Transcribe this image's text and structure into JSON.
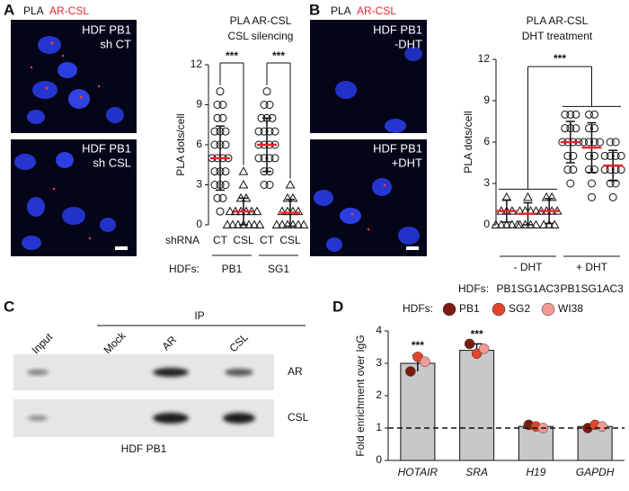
{
  "panels": {
    "A": {
      "letter": "A",
      "header": [
        "PLA",
        "AR-CSL"
      ],
      "images": [
        {
          "label": [
            "HDF PB1",
            "sh CT"
          ]
        },
        {
          "label": [
            "HDF PB1",
            "sh CSL"
          ]
        }
      ]
    },
    "B": {
      "letter": "B",
      "header": [
        "PLA",
        "AR-CSL"
      ],
      "images": [
        {
          "label": [
            "HDF PB1",
            "-DHT"
          ]
        },
        {
          "label": [
            "HDF PB1",
            "+DHT"
          ]
        }
      ]
    },
    "C": {
      "letter": "C",
      "ip_label": "IP",
      "lanes": [
        "Input",
        "Mock",
        "AR",
        "CSL"
      ],
      "rows": [
        "AR",
        "CSL"
      ],
      "caption": "HDF PB1"
    },
    "D": {
      "letter": "D"
    }
  },
  "chart_data": [
    {
      "type": "strip",
      "title": "PLA AR-CSL",
      "subtitle": "CSL silencing",
      "y_label": "PLA dots/cell",
      "ylim": [
        0,
        12
      ],
      "yticks": [
        0,
        3,
        6,
        9,
        12
      ],
      "category_label": "shRNA",
      "group_label": "HDFs:",
      "mean_color": "#e8262a",
      "significance": [
        "***",
        "***"
      ],
      "groups": [
        {
          "name": "PB1",
          "categories": [
            "CT",
            "CSL"
          ],
          "points": [
            {
              "marker": "circle",
              "values": [
                10,
                9,
                9,
                8,
                8,
                7,
                7,
                7,
                6,
                6,
                6,
                5,
                5,
                5,
                5,
                4,
                4,
                4,
                3,
                3,
                3,
                2,
                2,
                1
              ],
              "mean": 5,
              "sd": 2.4
            },
            {
              "marker": "triangle",
              "values": [
                4,
                3,
                2,
                2,
                1,
                1,
                1,
                1,
                1,
                1,
                0,
                0,
                0,
                0,
                0,
                0,
                0
              ],
              "mean": 1,
              "sd": 1
            }
          ]
        },
        {
          "name": "SG1",
          "categories": [
            "CT",
            "CSL"
          ],
          "points": [
            {
              "marker": "circle",
              "values": [
                10,
                9,
                9,
                8,
                8,
                8,
                7,
                7,
                7,
                7,
                6,
                6,
                6,
                6,
                5,
                5,
                5,
                5,
                4,
                4,
                3,
                3
              ],
              "mean": 6,
              "sd": 2
            },
            {
              "marker": "triangle",
              "values": [
                3,
                2,
                2,
                1,
                1,
                1,
                1,
                0,
                0,
                0,
                0,
                0,
                0
              ],
              "mean": 0.9,
              "sd": 1
            }
          ]
        }
      ]
    },
    {
      "type": "strip",
      "title": "PLA AR-CSL",
      "subtitle": "DHT treatment",
      "y_label": "PLA dots/cell",
      "ylim": [
        0,
        12
      ],
      "yticks": [
        0,
        3,
        6,
        9,
        12
      ],
      "category_label": "HDFs:",
      "mean_color": "#e8262a",
      "significance": "***",
      "groups": [
        {
          "name": "- DHT",
          "categories": [
            "PB1",
            "SG1",
            "AC3"
          ],
          "points": [
            {
              "marker": "triangle",
              "values": [
                2,
                1,
                1,
                1,
                0,
                0,
                0,
                0,
                0
              ],
              "mean": 1,
              "sd": 0.8
            },
            {
              "marker": "triangle",
              "values": [
                2,
                1,
                1,
                1,
                1,
                0,
                0,
                0,
                0
              ],
              "mean": 0.8,
              "sd": 0.8
            },
            {
              "marker": "triangle",
              "values": [
                2,
                2,
                1,
                1,
                1,
                1,
                0,
                0,
                0
              ],
              "mean": 1,
              "sd": 0.9
            }
          ]
        },
        {
          "name": "+ DHT",
          "categories": [
            "PB1",
            "SG1",
            "AC3"
          ],
          "points": [
            {
              "marker": "circle",
              "values": [
                8,
                8,
                8,
                7,
                7,
                7,
                6,
                6,
                6,
                6,
                5,
                5,
                4,
                4,
                3
              ],
              "mean": 6,
              "sd": 1.5
            },
            {
              "marker": "circle",
              "values": [
                8,
                8,
                7,
                7,
                6,
                6,
                6,
                6,
                5,
                5,
                4,
                4,
                3,
                2
              ],
              "mean": 5.6,
              "sd": 1.8
            },
            {
              "marker": "circle",
              "values": [
                6,
                6,
                5,
                5,
                5,
                5,
                4,
                4,
                4,
                4,
                3,
                3,
                2
              ],
              "mean": 4.3,
              "sd": 1.1
            }
          ]
        }
      ]
    },
    {
      "type": "bar",
      "y_label": "Fold enrichment over IgG",
      "ylim": [
        0,
        4
      ],
      "yticks": [
        0,
        1,
        2,
        3,
        4
      ],
      "categories": [
        "HOTAIR",
        "SRA",
        "H19",
        "GAPDH"
      ],
      "values": [
        3.0,
        3.4,
        1.05,
        1.05
      ],
      "errors": [
        0.25,
        0.2,
        0.05,
        0.05
      ],
      "color": "#c8c8c8",
      "ref_line": 1,
      "significance": [
        "***",
        "***",
        null,
        null
      ],
      "legend_title": "HDFs:",
      "series": [
        {
          "name": "PB1",
          "color": "#7a1c12",
          "values": [
            2.75,
            3.6,
            1.1,
            1.0
          ]
        },
        {
          "name": "SG2",
          "color": "#e0452c",
          "values": [
            3.2,
            3.3,
            1.05,
            1.1
          ]
        },
        {
          "name": "WI38",
          "color": "#f29a94",
          "values": [
            3.05,
            3.45,
            1.0,
            1.05
          ]
        }
      ]
    }
  ]
}
